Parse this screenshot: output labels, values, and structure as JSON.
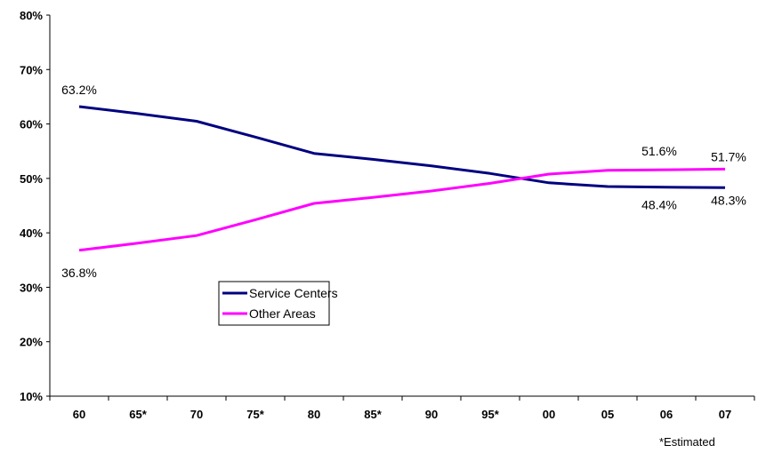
{
  "chart_data": {
    "type": "line",
    "categories": [
      "60",
      "65*",
      "70",
      "75*",
      "80",
      "85*",
      "90",
      "95*",
      "00",
      "05",
      "06",
      "07"
    ],
    "series": [
      {
        "name": "Service Centers",
        "color": "#000080",
        "values": [
          63.2,
          61.9,
          60.5,
          57.6,
          54.6,
          53.5,
          52.3,
          50.9,
          49.2,
          48.5,
          48.4,
          48.3
        ]
      },
      {
        "name": "Other Areas",
        "color": "#FF00FF",
        "values": [
          36.8,
          38.1,
          39.5,
          42.4,
          45.4,
          46.5,
          47.7,
          49.1,
          50.8,
          51.5,
          51.6,
          51.7
        ]
      }
    ],
    "yticks": [
      "10%",
      "20%",
      "30%",
      "40%",
      "50%",
      "60%",
      "70%",
      "80%"
    ],
    "ylim": [
      10,
      80
    ],
    "data_labels": [
      {
        "series": 0,
        "index": 0,
        "text": "63.2%"
      },
      {
        "series": 1,
        "index": 0,
        "text": "36.8%"
      },
      {
        "series": 1,
        "index": 10,
        "text": "51.6%"
      },
      {
        "series": 1,
        "index": 11,
        "text": "51.7%"
      },
      {
        "series": 0,
        "index": 10,
        "text": "48.4%"
      },
      {
        "series": 0,
        "index": 11,
        "text": "48.3%"
      }
    ],
    "legend": {
      "placement": "center-left",
      "entries": [
        "Service Centers",
        "Other Areas"
      ]
    },
    "note": "*Estimated",
    "grid": false
  }
}
